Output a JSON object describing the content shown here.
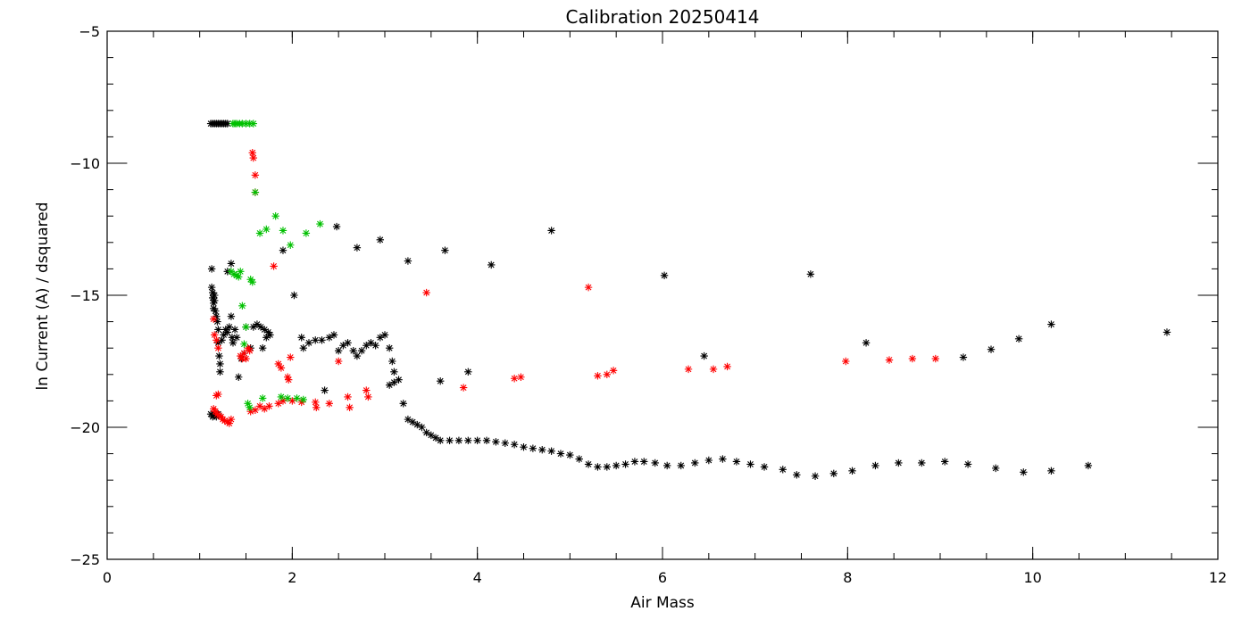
{
  "chart_data": {
    "type": "scatter",
    "title": "Calibration 20250414",
    "xlabel": "Air Mass",
    "ylabel": "ln Current (A) / dsquared",
    "xlim": [
      0,
      12
    ],
    "ylim": [
      -25,
      -5
    ],
    "x_ticks": [
      0,
      2,
      4,
      6,
      8,
      10,
      12
    ],
    "x_tick_labels": [
      "0",
      "2",
      "4",
      "6",
      "8",
      "10",
      "12"
    ],
    "y_ticks": [
      -25,
      -20,
      -15,
      -10,
      -5
    ],
    "y_tick_labels": [
      "−25",
      "−20",
      "−15",
      "−10",
      "−5"
    ],
    "x_minor_step": 0.5,
    "y_minor_step": 1,
    "grid": false,
    "marker": "asterisk",
    "series": [
      {
        "color": "#000000",
        "points": [
          [
            1.12,
            -8.5
          ],
          [
            1.14,
            -8.5
          ],
          [
            1.16,
            -8.5
          ],
          [
            1.18,
            -8.5
          ],
          [
            1.2,
            -8.5
          ],
          [
            1.22,
            -8.5
          ],
          [
            1.24,
            -8.5
          ],
          [
            1.26,
            -8.5
          ],
          [
            1.28,
            -8.5
          ],
          [
            1.3,
            -8.5
          ],
          [
            1.12,
            -19.5
          ],
          [
            1.14,
            -19.6
          ],
          [
            1.16,
            -19.5
          ],
          [
            1.18,
            -19.6
          ],
          [
            1.2,
            -19.5
          ],
          [
            1.13,
            -14.0
          ],
          [
            1.13,
            -14.7
          ],
          [
            1.14,
            -14.9
          ],
          [
            1.14,
            -15.1
          ],
          [
            1.15,
            -15.3
          ],
          [
            1.15,
            -15.5
          ],
          [
            1.16,
            -15.2
          ],
          [
            1.16,
            -15.0
          ],
          [
            1.17,
            -15.6
          ],
          [
            1.18,
            -15.8
          ],
          [
            1.19,
            -16.0
          ],
          [
            1.2,
            -16.3
          ],
          [
            1.2,
            -16.8
          ],
          [
            1.21,
            -17.3
          ],
          [
            1.22,
            -17.6
          ],
          [
            1.22,
            -17.9
          ],
          [
            1.24,
            -16.7
          ],
          [
            1.26,
            -16.5
          ],
          [
            1.28,
            -16.3
          ],
          [
            1.3,
            -16.4
          ],
          [
            1.32,
            -16.2
          ],
          [
            1.34,
            -15.8
          ],
          [
            1.35,
            -16.6
          ],
          [
            1.36,
            -16.8
          ],
          [
            1.38,
            -16.3
          ],
          [
            1.3,
            -14.1
          ],
          [
            1.34,
            -13.8
          ],
          [
            1.4,
            -16.6
          ],
          [
            1.42,
            -18.1
          ],
          [
            1.45,
            -17.4
          ],
          [
            1.48,
            -17.2
          ],
          [
            1.5,
            -16.2
          ],
          [
            1.55,
            -17.0
          ],
          [
            1.58,
            -16.2
          ],
          [
            1.62,
            -16.1
          ],
          [
            1.66,
            -16.2
          ],
          [
            1.7,
            -16.3
          ],
          [
            1.72,
            -16.6
          ],
          [
            1.74,
            -16.4
          ],
          [
            1.76,
            -16.5
          ],
          [
            1.68,
            -17.0
          ],
          [
            1.9,
            -13.3
          ],
          [
            2.02,
            -15.0
          ],
          [
            2.1,
            -16.6
          ],
          [
            2.12,
            -17.0
          ],
          [
            2.18,
            -16.8
          ],
          [
            2.25,
            -16.7
          ],
          [
            2.32,
            -16.7
          ],
          [
            2.4,
            -16.6
          ],
          [
            2.45,
            -16.5
          ],
          [
            2.5,
            -17.1
          ],
          [
            2.55,
            -16.9
          ],
          [
            2.6,
            -16.8
          ],
          [
            2.66,
            -17.1
          ],
          [
            2.7,
            -17.3
          ],
          [
            2.75,
            -17.1
          ],
          [
            2.8,
            -16.9
          ],
          [
            2.85,
            -16.8
          ],
          [
            2.9,
            -16.9
          ],
          [
            2.95,
            -16.6
          ],
          [
            3.0,
            -16.5
          ],
          [
            3.05,
            -17.0
          ],
          [
            3.08,
            -17.5
          ],
          [
            3.1,
            -17.9
          ],
          [
            3.05,
            -18.4
          ],
          [
            3.1,
            -18.3
          ],
          [
            3.15,
            -18.2
          ],
          [
            3.2,
            -19.1
          ],
          [
            3.25,
            -19.7
          ],
          [
            3.3,
            -19.8
          ],
          [
            3.35,
            -19.9
          ],
          [
            3.4,
            -20.0
          ],
          [
            3.45,
            -20.2
          ],
          [
            3.5,
            -20.3
          ],
          [
            3.55,
            -20.4
          ],
          [
            3.6,
            -20.5
          ],
          [
            3.7,
            -20.5
          ],
          [
            3.8,
            -20.5
          ],
          [
            3.9,
            -20.5
          ],
          [
            4.0,
            -20.5
          ],
          [
            4.1,
            -20.5
          ],
          [
            4.2,
            -20.55
          ],
          [
            4.3,
            -20.6
          ],
          [
            4.4,
            -20.65
          ],
          [
            4.5,
            -20.75
          ],
          [
            4.6,
            -20.8
          ],
          [
            4.7,
            -20.85
          ],
          [
            4.8,
            -20.9
          ],
          [
            4.9,
            -21.0
          ],
          [
            5.0,
            -21.05
          ],
          [
            5.1,
            -21.2
          ],
          [
            5.2,
            -21.4
          ],
          [
            5.3,
            -21.5
          ],
          [
            5.4,
            -21.5
          ],
          [
            5.5,
            -21.45
          ],
          [
            5.6,
            -21.4
          ],
          [
            5.7,
            -21.3
          ],
          [
            5.8,
            -21.3
          ],
          [
            5.92,
            -21.35
          ],
          [
            6.05,
            -21.45
          ],
          [
            6.2,
            -21.45
          ],
          [
            6.35,
            -21.35
          ],
          [
            6.5,
            -21.25
          ],
          [
            6.65,
            -21.2
          ],
          [
            6.8,
            -21.3
          ],
          [
            6.95,
            -21.4
          ],
          [
            7.1,
            -21.5
          ],
          [
            7.3,
            -21.6
          ],
          [
            7.45,
            -21.8
          ],
          [
            7.65,
            -21.85
          ],
          [
            7.85,
            -21.75
          ],
          [
            8.05,
            -21.65
          ],
          [
            8.3,
            -21.45
          ],
          [
            8.55,
            -21.35
          ],
          [
            8.8,
            -21.35
          ],
          [
            9.05,
            -21.3
          ],
          [
            9.3,
            -21.4
          ],
          [
            9.6,
            -21.55
          ],
          [
            9.9,
            -21.7
          ],
          [
            10.2,
            -21.65
          ],
          [
            10.6,
            -21.45
          ],
          [
            2.35,
            -18.6
          ],
          [
            2.48,
            -12.4
          ],
          [
            2.7,
            -13.2
          ],
          [
            2.95,
            -12.9
          ],
          [
            3.25,
            -13.7
          ],
          [
            3.6,
            -18.25
          ],
          [
            3.65,
            -13.3
          ],
          [
            3.9,
            -17.9
          ],
          [
            4.15,
            -13.85
          ],
          [
            4.8,
            -12.55
          ],
          [
            6.02,
            -14.25
          ],
          [
            6.45,
            -17.3
          ],
          [
            7.6,
            -14.2
          ],
          [
            8.2,
            -16.8
          ],
          [
            9.25,
            -17.35
          ],
          [
            9.55,
            -17.05
          ],
          [
            9.85,
            -16.65
          ],
          [
            10.2,
            -16.1
          ],
          [
            11.45,
            -16.4
          ]
        ]
      },
      {
        "color": "#ff0000",
        "points": [
          [
            1.15,
            -15.9
          ],
          [
            1.16,
            -16.5
          ],
          [
            1.18,
            -16.7
          ],
          [
            1.2,
            -17.0
          ],
          [
            1.18,
            -18.8
          ],
          [
            1.2,
            -18.75
          ],
          [
            1.15,
            -19.3
          ],
          [
            1.17,
            -19.4
          ],
          [
            1.19,
            -19.5
          ],
          [
            1.21,
            -19.55
          ],
          [
            1.23,
            -19.6
          ],
          [
            1.25,
            -19.7
          ],
          [
            1.27,
            -19.75
          ],
          [
            1.3,
            -19.8
          ],
          [
            1.32,
            -19.85
          ],
          [
            1.34,
            -19.7
          ],
          [
            1.44,
            -17.3
          ],
          [
            1.46,
            -17.4
          ],
          [
            1.48,
            -17.2
          ],
          [
            1.5,
            -17.4
          ],
          [
            1.52,
            -17.0
          ],
          [
            1.54,
            -17.1
          ],
          [
            1.57,
            -9.6
          ],
          [
            1.58,
            -9.8
          ],
          [
            1.6,
            -10.45
          ],
          [
            1.6,
            -11.1
          ],
          [
            1.55,
            -19.4
          ],
          [
            1.6,
            -19.35
          ],
          [
            1.65,
            -19.2
          ],
          [
            1.7,
            -19.3
          ],
          [
            1.75,
            -19.2
          ],
          [
            1.8,
            -13.9
          ],
          [
            1.85,
            -17.6
          ],
          [
            1.88,
            -17.75
          ],
          [
            1.95,
            -18.1
          ],
          [
            1.96,
            -18.2
          ],
          [
            1.98,
            -17.35
          ],
          [
            1.85,
            -19.1
          ],
          [
            1.9,
            -19.0
          ],
          [
            2.0,
            -19.0
          ],
          [
            2.1,
            -19.05
          ],
          [
            2.25,
            -19.05
          ],
          [
            2.26,
            -19.25
          ],
          [
            2.4,
            -19.1
          ],
          [
            2.5,
            -17.5
          ],
          [
            2.6,
            -18.85
          ],
          [
            2.62,
            -19.25
          ],
          [
            2.8,
            -18.6
          ],
          [
            2.82,
            -18.85
          ],
          [
            3.45,
            -14.9
          ],
          [
            3.85,
            -18.5
          ],
          [
            4.4,
            -18.15
          ],
          [
            4.47,
            -18.1
          ],
          [
            5.2,
            -14.7
          ],
          [
            5.3,
            -18.05
          ],
          [
            5.4,
            -18.0
          ],
          [
            5.47,
            -17.85
          ],
          [
            6.28,
            -17.8
          ],
          [
            6.55,
            -17.8
          ],
          [
            6.7,
            -17.7
          ],
          [
            7.98,
            -17.5
          ],
          [
            8.45,
            -17.45
          ],
          [
            8.7,
            -17.4
          ],
          [
            8.95,
            -17.4
          ]
        ]
      },
      {
        "color": "#00c000",
        "points": [
          [
            1.36,
            -8.5
          ],
          [
            1.38,
            -8.5
          ],
          [
            1.4,
            -8.5
          ],
          [
            1.43,
            -8.5
          ],
          [
            1.46,
            -8.5
          ],
          [
            1.5,
            -8.5
          ],
          [
            1.54,
            -8.5
          ],
          [
            1.58,
            -8.5
          ],
          [
            1.34,
            -14.1
          ],
          [
            1.37,
            -14.2
          ],
          [
            1.4,
            -14.25
          ],
          [
            1.42,
            -14.3
          ],
          [
            1.44,
            -14.1
          ],
          [
            1.46,
            -15.4
          ],
          [
            1.55,
            -14.4
          ],
          [
            1.57,
            -14.5
          ],
          [
            1.6,
            -11.1
          ],
          [
            1.48,
            -16.85
          ],
          [
            1.5,
            -16.2
          ],
          [
            1.52,
            -19.1
          ],
          [
            1.54,
            -19.25
          ],
          [
            1.68,
            -18.9
          ],
          [
            1.88,
            -18.85
          ],
          [
            1.95,
            -18.9
          ],
          [
            2.05,
            -18.9
          ],
          [
            2.12,
            -18.95
          ],
          [
            1.65,
            -12.65
          ],
          [
            1.72,
            -12.5
          ],
          [
            1.82,
            -12.0
          ],
          [
            1.9,
            -12.55
          ],
          [
            1.98,
            -13.1
          ],
          [
            2.15,
            -12.65
          ],
          [
            2.3,
            -12.3
          ]
        ]
      }
    ]
  }
}
